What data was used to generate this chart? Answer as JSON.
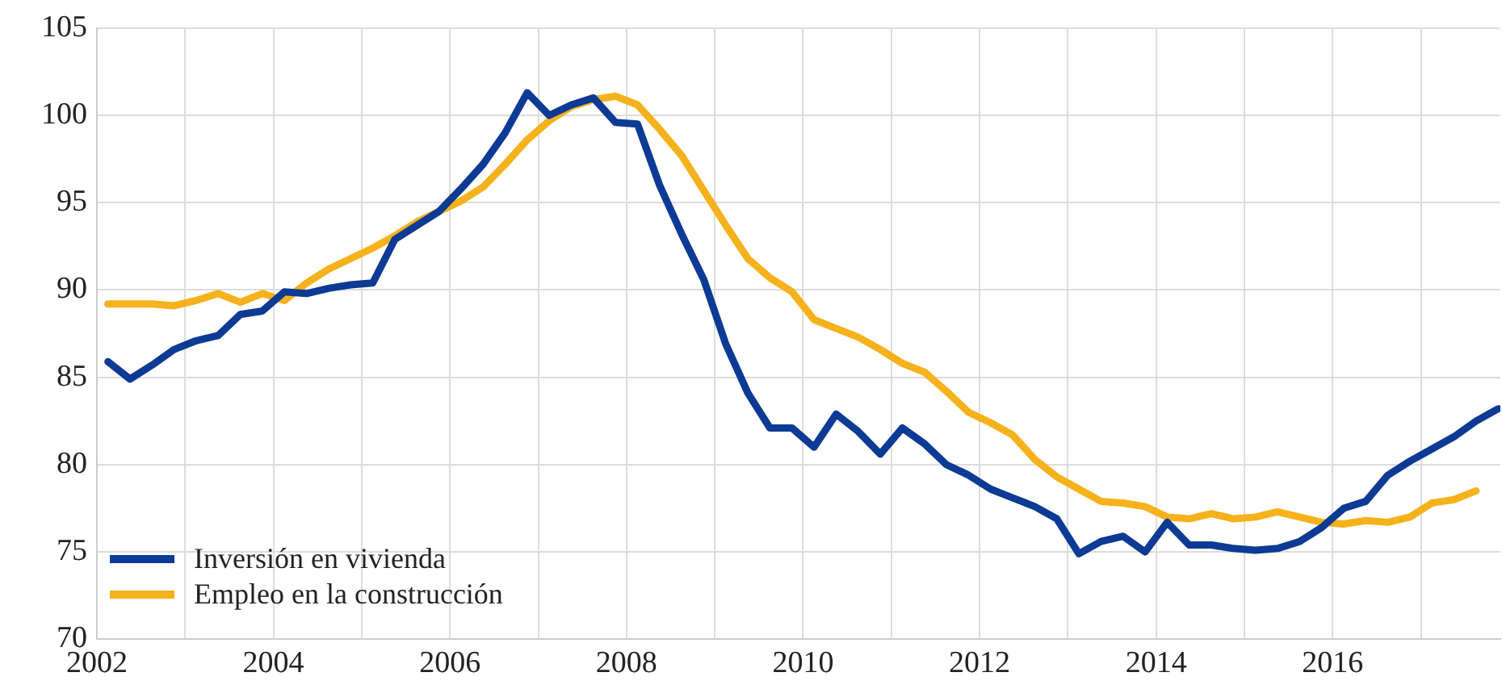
{
  "chart_data": {
    "type": "line",
    "x": [
      2002.125,
      2002.375,
      2002.625,
      2002.875,
      2003.125,
      2003.375,
      2003.625,
      2003.875,
      2004.125,
      2004.375,
      2004.625,
      2004.875,
      2005.125,
      2005.375,
      2005.625,
      2005.875,
      2006.125,
      2006.375,
      2006.625,
      2006.875,
      2007.125,
      2007.375,
      2007.625,
      2007.875,
      2008.125,
      2008.375,
      2008.625,
      2008.875,
      2009.125,
      2009.375,
      2009.625,
      2009.875,
      2010.125,
      2010.375,
      2010.625,
      2010.875,
      2011.125,
      2011.375,
      2011.625,
      2011.875,
      2012.125,
      2012.375,
      2012.625,
      2012.875,
      2013.125,
      2013.375,
      2013.625,
      2013.875,
      2014.125,
      2014.375,
      2014.625,
      2014.875,
      2015.125,
      2015.375,
      2015.625,
      2015.875,
      2016.125,
      2016.375,
      2016.625,
      2016.875,
      2017.125,
      2017.375,
      2017.625,
      2017.875
    ],
    "series": [
      {
        "name": "Inversión en vivienda",
        "color": "#0d3a94",
        "values": [
          85.9,
          84.9,
          85.7,
          86.6,
          87.1,
          87.4,
          88.6,
          88.8,
          89.9,
          89.8,
          90.1,
          90.3,
          90.4,
          92.9,
          93.7,
          94.5,
          95.8,
          97.2,
          99.0,
          101.3,
          100.0,
          100.6,
          101.0,
          99.6,
          99.5,
          96.0,
          93.2,
          90.6,
          86.9,
          84.1,
          82.1,
          82.1,
          81.0,
          82.9,
          81.9,
          80.6,
          82.1,
          81.2,
          80.0,
          79.4,
          78.6,
          78.1,
          77.6,
          76.9,
          74.9,
          75.6,
          75.9,
          75.0,
          76.7,
          75.4,
          75.4,
          75.2,
          75.1,
          75.2,
          75.6,
          76.4,
          77.5,
          77.9,
          79.4,
          80.2,
          80.9,
          81.6,
          82.5,
          83.2
        ]
      },
      {
        "name": "Empleo en la construcción",
        "color": "#f5b21c",
        "values": [
          89.2,
          89.2,
          89.2,
          89.1,
          89.4,
          89.8,
          89.3,
          89.8,
          89.4,
          90.4,
          91.2,
          91.8,
          92.4,
          93.1,
          93.9,
          94.5,
          95.1,
          95.9,
          97.2,
          98.6,
          99.7,
          100.5,
          100.9,
          101.1,
          100.6,
          99.2,
          97.7,
          95.7,
          93.7,
          91.8,
          90.7,
          89.9,
          88.3,
          87.8,
          87.3,
          86.6,
          85.8,
          85.3,
          84.2,
          83.0,
          82.4,
          81.7,
          80.3,
          79.3,
          78.6,
          77.9,
          77.8,
          77.6,
          77.0,
          76.9,
          77.2,
          76.9,
          77.0,
          77.3,
          77.0,
          76.7,
          76.6,
          76.8,
          76.7,
          77.0,
          77.8,
          78.0,
          78.5,
          null
        ]
      }
    ],
    "xlim": [
      2002,
      2017.9
    ],
    "xticks": [
      2002,
      {
        "value": 2003,
        "label": null
      },
      2004,
      {
        "value": 2005,
        "label": null
      },
      2006,
      {
        "value": 2007,
        "label": null
      },
      2008,
      {
        "value": 2009,
        "label": null
      },
      2010,
      {
        "value": 2011,
        "label": null
      },
      2012,
      {
        "value": 2013,
        "label": null
      },
      2014,
      {
        "value": 2015,
        "label": null
      },
      2016,
      {
        "value": 2017,
        "label": null
      }
    ],
    "ylim": [
      70,
      105
    ],
    "yticks": [
      70,
      75,
      80,
      85,
      90,
      95,
      100,
      105
    ],
    "grid": true,
    "legend": "bottom left",
    "line_style": "solid",
    "marker": "none"
  }
}
